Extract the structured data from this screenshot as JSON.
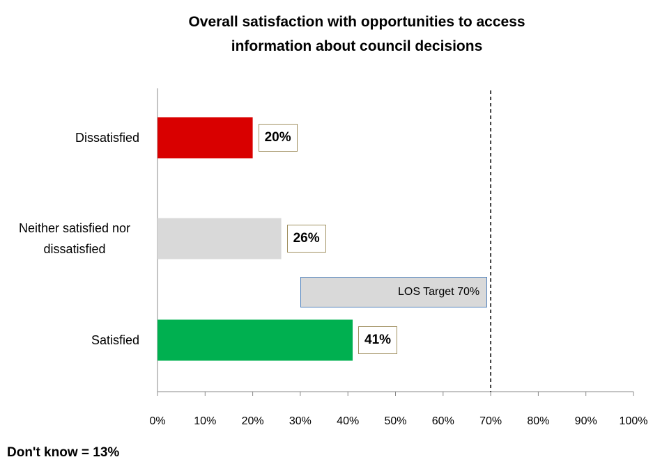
{
  "chart_data": {
    "type": "hbar",
    "title": "Overall satisfaction with opportunities to access information about council decisions",
    "categories": [
      "Dissatisfied",
      "Neither satisfied nor dissatisfied",
      "Satisfied"
    ],
    "values": [
      20,
      26,
      41
    ],
    "value_labels": [
      "20%",
      "26%",
      "41%"
    ],
    "colors": [
      "#d90000",
      "#d9d9d9",
      "#00b050"
    ],
    "xlim": [
      0,
      100
    ],
    "xticks": [
      {
        "value": 0,
        "label": "0%"
      },
      {
        "value": 10,
        "label": "10%"
      },
      {
        "value": 20,
        "label": "20%"
      },
      {
        "value": 30,
        "label": "30%"
      },
      {
        "value": 40,
        "label": "40%"
      },
      {
        "value": 50,
        "label": "50%"
      },
      {
        "value": 60,
        "label": "60%"
      },
      {
        "value": 70,
        "label": "70%"
      },
      {
        "value": 80,
        "label": "80%"
      },
      {
        "value": 90,
        "label": "90%"
      },
      {
        "value": 100,
        "label": "100%"
      }
    ],
    "target": {
      "value": 70,
      "label": "LOS Target 70%"
    },
    "footnote": "Don't know = 13%"
  }
}
